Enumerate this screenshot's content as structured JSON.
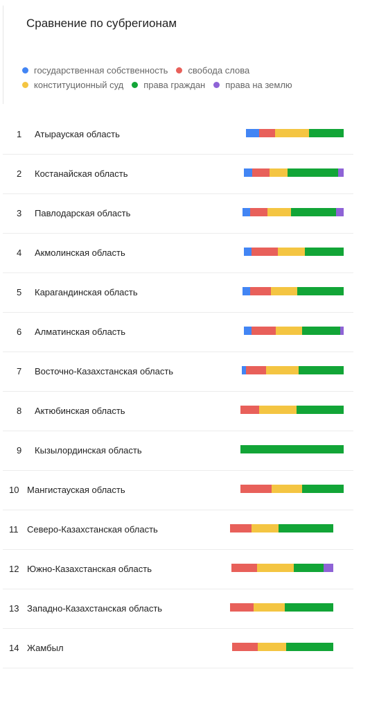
{
  "title": "Сравнение по субрегионам",
  "chart_data": {
    "type": "bar",
    "orientation": "horizontal",
    "stacked": true,
    "series": [
      {
        "name": "государственная собственность",
        "color": "#4285f4"
      },
      {
        "name": "свобода слова",
        "color": "#e8605a"
      },
      {
        "name": "конституционный суд",
        "color": "#f4c542"
      },
      {
        "name": "права граждан",
        "color": "#12a537"
      },
      {
        "name": "права на землю",
        "color": "#8e63d6"
      }
    ],
    "rows": [
      {
        "rank": "1",
        "label": "Атырауская область",
        "values": [
          12,
          15,
          32,
          32,
          0
        ]
      },
      {
        "rank": "2",
        "label": "Костанайская область",
        "values": [
          8,
          16,
          17,
          47,
          5
        ]
      },
      {
        "rank": "3",
        "label": "Павлодарская область",
        "values": [
          7,
          16,
          22,
          42,
          7
        ]
      },
      {
        "rank": "4",
        "label": "Акмолинская область",
        "values": [
          7,
          25,
          25,
          36,
          0
        ]
      },
      {
        "rank": "5",
        "label": "Карагандинская область",
        "values": [
          7,
          19,
          25,
          43,
          0
        ]
      },
      {
        "rank": "6",
        "label": "Алматинская область",
        "values": [
          7,
          23,
          24,
          36,
          3
        ]
      },
      {
        "rank": "7",
        "label": "Восточно-Казахстанская область",
        "values": [
          4,
          19,
          30,
          42,
          0
        ]
      },
      {
        "rank": "8",
        "label": "Актюбинская область",
        "values": [
          0,
          17,
          35,
          44,
          0
        ]
      },
      {
        "rank": "9",
        "label": "Кызылординская область",
        "values": [
          0,
          0,
          0,
          96,
          0
        ]
      },
      {
        "rank": "10",
        "label": "Мангистауская область",
        "values": [
          0,
          29,
          28,
          39,
          0
        ]
      },
      {
        "rank": "11",
        "label": "Северо-Казахстанская область",
        "values": [
          0,
          20,
          25,
          51,
          0
        ]
      },
      {
        "rank": "12",
        "label": "Южно-Казахстанская область",
        "values": [
          0,
          24,
          34,
          28,
          9
        ]
      },
      {
        "rank": "13",
        "label": "Западно-Казахстанская область",
        "values": [
          0,
          22,
          29,
          45,
          0
        ]
      },
      {
        "rank": "14",
        "label": "Жамбыл",
        "values": [
          0,
          24,
          26,
          44,
          0
        ]
      }
    ]
  }
}
